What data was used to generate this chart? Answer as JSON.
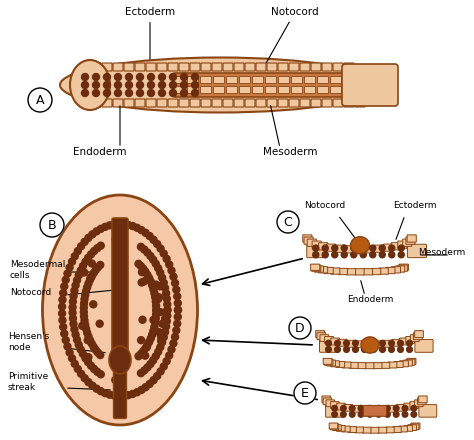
{
  "bg_color": "#ffffff",
  "outline_color": "#8B4513",
  "fill_color": "#f5deb3",
  "dot_color": "#6B2D0E",
  "dark_brown": "#6B2D0E",
  "medium_brown": "#8B4513",
  "light_fill": "#f0c8a0",
  "embryo_fill": "#f5c8a8",
  "labels": {
    "A_ectoderm": "Ectoderm",
    "A_notocord": "Notocord",
    "A_endoderm": "Endoderm",
    "A_mesoderm": "Mesoderm",
    "B_mesodermal": "Mesodermal\ncells",
    "B_notocord": "Notocord",
    "B_hensen": "Hensen's\nnode",
    "B_primitive": "Primitive\nstreak",
    "C_notocord": "Notocord",
    "C_ectoderm": "Ectoderm",
    "C_mesoderm": "Mesoderm",
    "C_endoderm": "Endoderm"
  }
}
